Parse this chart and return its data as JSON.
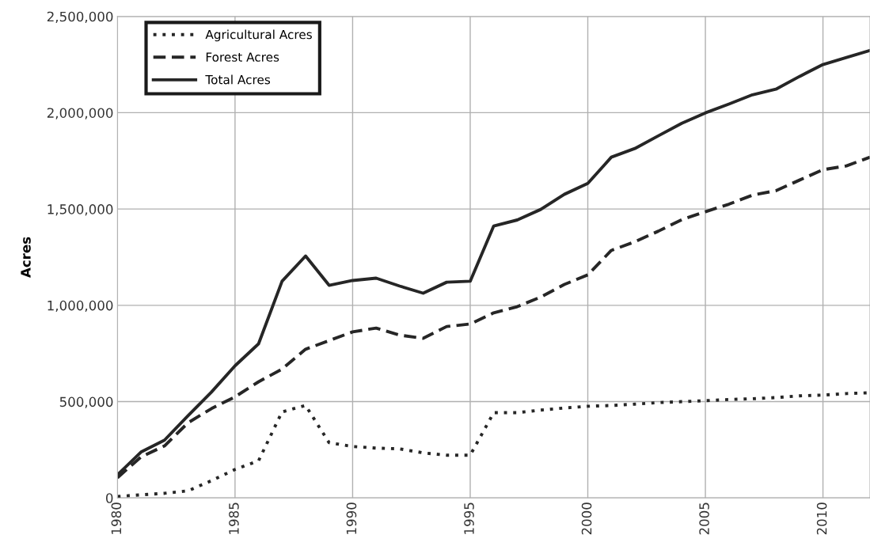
{
  "chart_data": {
    "type": "line",
    "ylabel": "Acres",
    "x": [
      1980,
      1981,
      1982,
      1983,
      1984,
      1985,
      1986,
      1987,
      1988,
      1989,
      1990,
      1991,
      1992,
      1993,
      1994,
      1995,
      1996,
      1997,
      1998,
      1999,
      2000,
      2001,
      2002,
      2003,
      2004,
      2005,
      2006,
      2007,
      2008,
      2009,
      2010,
      2011,
      2012
    ],
    "series": [
      {
        "name": "Agricultural Acres",
        "color": "#262626",
        "line_style": "dotted",
        "values": [
          8000,
          16000,
          24000,
          37000,
          90000,
          148000,
          193000,
          447000,
          480000,
          287000,
          267000,
          259000,
          255000,
          234000,
          222000,
          222000,
          443000,
          443000,
          456000,
          467000,
          476000,
          480000,
          487000,
          495000,
          500000,
          505000,
          511000,
          515000,
          521000,
          530000,
          534000,
          542000,
          546000
        ]
      },
      {
        "name": "Forest Acres",
        "color": "#262626",
        "line_style": "dashed",
        "values": [
          105000,
          213000,
          270000,
          390000,
          464000,
          525000,
          603000,
          669000,
          772000,
          817000,
          862000,
          882000,
          845000,
          829000,
          890000,
          903000,
          961000,
          993000,
          1043000,
          1108000,
          1158000,
          1285000,
          1330000,
          1385000,
          1445000,
          1486000,
          1525000,
          1572000,
          1595000,
          1650000,
          1704000,
          1724000,
          1769000
        ]
      },
      {
        "name": "Total Acres",
        "color": "#262626",
        "line_style": "solid",
        "values": [
          120000,
          238000,
          300000,
          427000,
          550000,
          686000,
          800000,
          1125000,
          1256000,
          1104000,
          1129000,
          1141000,
          1100000,
          1063000,
          1120000,
          1125000,
          1412000,
          1443000,
          1498000,
          1576000,
          1633000,
          1769000,
          1814000,
          1880000,
          1945000,
          1999000,
          2045000,
          2093000,
          2122000,
          2188000,
          2250000,
          2287000,
          2323000
        ]
      }
    ],
    "xlim": [
      1980,
      2012
    ],
    "xticks": [
      1980,
      1985,
      1990,
      1995,
      2000,
      2005,
      2010
    ],
    "ylim": [
      0,
      2500000
    ],
    "yticks": [
      {
        "value": 0,
        "label": "0"
      },
      {
        "value": 500000,
        "label": "500,000"
      },
      {
        "value": 1000000,
        "label": "1,000,000"
      },
      {
        "value": 1500000,
        "label": "1,500,000"
      },
      {
        "value": 2000000,
        "label": "2,000,000"
      },
      {
        "value": 2500000,
        "label": "2,500,000"
      }
    ],
    "grid": true,
    "legend": "top left",
    "marker": "none"
  }
}
